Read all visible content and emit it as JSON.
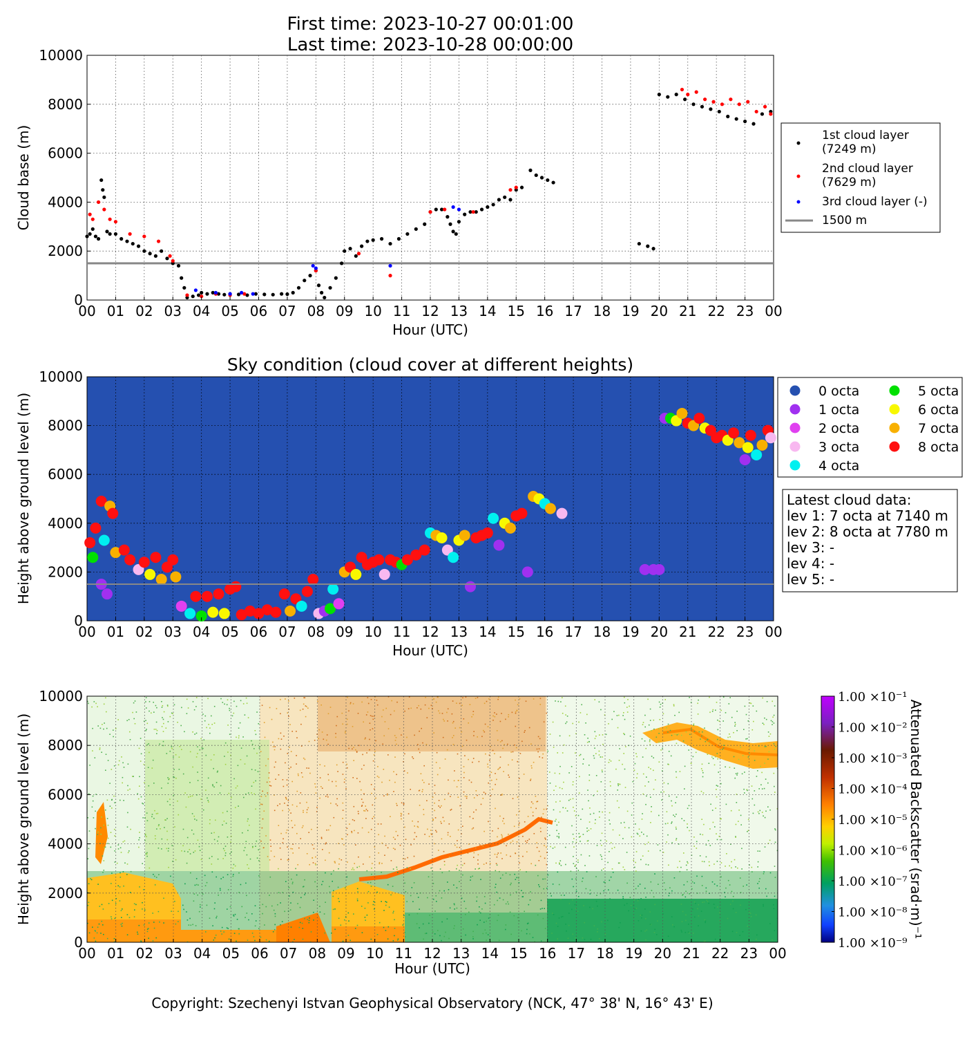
{
  "header": {
    "line1": "First time: 2023-10-27 00:01:00",
    "line2": "Last time: 2023-10-28 00:00:00"
  },
  "footer": {
    "copyright": "Copyright: Szechenyi Istvan Geophysical Observatory (NCK, 47° 38' N, 16° 43' E)"
  },
  "chart_data": [
    {
      "id": "cloud-base",
      "type": "scatter",
      "title": "",
      "xlabel": "Hour (UTC)",
      "ylabel": "Cloud base (m)",
      "xlim": [
        0,
        24
      ],
      "ylim": [
        0,
        10000
      ],
      "x_ticks": [
        "00",
        "01",
        "02",
        "03",
        "04",
        "05",
        "06",
        "07",
        "08",
        "09",
        "10",
        "11",
        "12",
        "13",
        "14",
        "15",
        "16",
        "17",
        "18",
        "19",
        "20",
        "21",
        "22",
        "23",
        "00"
      ],
      "y_ticks": [
        "0",
        "2000",
        "4000",
        "6000",
        "8000",
        "10000"
      ],
      "grid": true,
      "legend_position": "right",
      "reference_line": {
        "name": "1500 m",
        "y": 1500,
        "color": "#888888"
      },
      "series": [
        {
          "name": "1st cloud layer (7249 m)",
          "color": "#000000",
          "x": [
            0.0,
            0.1,
            0.2,
            0.3,
            0.4,
            0.5,
            0.55,
            0.6,
            0.7,
            0.8,
            1.0,
            1.2,
            1.4,
            1.6,
            1.8,
            2.0,
            2.2,
            2.4,
            2.6,
            2.8,
            3.0,
            3.2,
            3.3,
            3.4,
            3.5,
            3.7,
            3.9,
            4.0,
            4.2,
            4.4,
            4.6,
            4.8,
            5.0,
            5.3,
            5.6,
            5.9,
            6.2,
            6.5,
            6.8,
            7.0,
            7.2,
            7.4,
            7.6,
            7.8,
            8.0,
            8.1,
            8.2,
            8.3,
            8.5,
            8.7,
            8.9,
            9.0,
            9.2,
            9.4,
            9.6,
            9.8,
            10.0,
            10.3,
            10.6,
            10.9,
            11.2,
            11.5,
            11.8,
            12.0,
            12.2,
            12.4,
            12.6,
            12.7,
            12.8,
            12.9,
            13.0,
            13.2,
            13.4,
            13.6,
            13.8,
            14.0,
            14.2,
            14.4,
            14.6,
            14.8,
            15.0,
            15.2,
            15.5,
            15.7,
            15.9,
            16.1,
            16.3,
            19.3,
            19.6,
            19.8,
            20.0,
            20.3,
            20.6,
            20.9,
            21.2,
            21.5,
            21.8,
            22.1,
            22.4,
            22.7,
            23.0,
            23.3,
            23.6,
            23.9
          ],
          "y": [
            2600,
            2700,
            2900,
            2600,
            2500,
            4900,
            4500,
            4200,
            2800,
            2700,
            2700,
            2500,
            2400,
            2300,
            2200,
            2000,
            1900,
            1800,
            2000,
            1700,
            1500,
            1400,
            900,
            500,
            100,
            150,
            200,
            300,
            250,
            300,
            250,
            220,
            250,
            230,
            200,
            250,
            230,
            220,
            250,
            240,
            300,
            500,
            800,
            1000,
            1200,
            600,
            300,
            100,
            500,
            900,
            1500,
            2000,
            2100,
            1800,
            2200,
            2400,
            2450,
            2500,
            2300,
            2500,
            2700,
            2900,
            3100,
            3600,
            3700,
            3700,
            3400,
            3100,
            2800,
            2700,
            3200,
            3500,
            3600,
            3600,
            3700,
            3800,
            3900,
            4100,
            4200,
            4100,
            4500,
            4600,
            5300,
            5100,
            5000,
            4900,
            4800,
            2300,
            2200,
            2100,
            8400,
            8300,
            8400,
            8200,
            8000,
            7900,
            7800,
            7700,
            7500,
            7400,
            7300,
            7200,
            7600,
            7700
          ]
        },
        {
          "name": "2nd cloud layer (7629 m)",
          "color": "#ff0000",
          "x": [
            0.1,
            0.2,
            0.4,
            0.6,
            0.8,
            1.0,
            1.5,
            2.0,
            2.5,
            2.9,
            3.0,
            3.5,
            4.0,
            4.5,
            5.0,
            5.5,
            8.0,
            9.5,
            10.6,
            12.0,
            12.5,
            13.5,
            14.8,
            15.0,
            20.8,
            21.0,
            21.3,
            21.6,
            21.9,
            22.2,
            22.5,
            22.8,
            23.1,
            23.4,
            23.7,
            23.9
          ],
          "y": [
            3500,
            3300,
            4000,
            3700,
            3300,
            3200,
            2700,
            2600,
            2400,
            1800,
            1600,
            200,
            150,
            250,
            200,
            250,
            1200,
            1900,
            1000,
            3600,
            3700,
            3600,
            4500,
            4600,
            8600,
            8400,
            8500,
            8200,
            8100,
            8000,
            8200,
            8000,
            8100,
            7700,
            7900,
            7600
          ]
        },
        {
          "name": "3rd cloud layer (-)",
          "color": "#0000ff",
          "x": [
            3.8,
            4.5,
            5.0,
            5.4,
            5.8,
            7.9,
            8.0,
            10.6,
            12.8,
            13.0
          ],
          "y": [
            400,
            300,
            250,
            300,
            250,
            1400,
            1300,
            1400,
            3800,
            3700
          ]
        }
      ]
    },
    {
      "id": "sky-condition",
      "type": "scatter",
      "title": "Sky condition (cloud cover at different heights)",
      "xlabel": "Hour (UTC)",
      "ylabel": "Height above ground level (m)",
      "xlim": [
        0,
        24
      ],
      "ylim": [
        0,
        10000
      ],
      "x_ticks": [
        "00",
        "01",
        "02",
        "03",
        "04",
        "05",
        "06",
        "07",
        "08",
        "09",
        "10",
        "11",
        "12",
        "13",
        "14",
        "15",
        "16",
        "17",
        "18",
        "19",
        "20",
        "21",
        "22",
        "23",
        "00"
      ],
      "y_ticks": [
        "0",
        "2000",
        "4000",
        "6000",
        "8000",
        "10000"
      ],
      "grid": true,
      "background": "#2550b0",
      "legend_position": "right",
      "reference_line": {
        "y": 1500,
        "color": "#888888"
      },
      "legend": [
        {
          "label": "0 octa",
          "color": "#2550b0"
        },
        {
          "label": "1 octa",
          "color": "#a030f0"
        },
        {
          "label": "2 octa",
          "color": "#e040f0"
        },
        {
          "label": "3 octa",
          "color": "#f8b8f0"
        },
        {
          "label": "4 octa",
          "color": "#00f0f0"
        },
        {
          "label": "5 octa",
          "color": "#00e000"
        },
        {
          "label": "6 octa",
          "color": "#f8f800"
        },
        {
          "label": "7 octa",
          "color": "#f8b000"
        },
        {
          "label": "8 octa",
          "color": "#ff1010"
        }
      ],
      "points": [
        [
          0.1,
          3200,
          8
        ],
        [
          0.2,
          2600,
          5
        ],
        [
          0.3,
          3800,
          8
        ],
        [
          0.5,
          4900,
          8
        ],
        [
          0.6,
          3300,
          4
        ],
        [
          0.8,
          4700,
          7
        ],
        [
          0.9,
          4400,
          8
        ],
        [
          0.5,
          1500,
          1
        ],
        [
          0.7,
          1100,
          1
        ],
        [
          1.0,
          2800,
          7
        ],
        [
          1.3,
          2900,
          8
        ],
        [
          1.5,
          2500,
          8
        ],
        [
          1.8,
          2100,
          3
        ],
        [
          2.0,
          2400,
          8
        ],
        [
          2.2,
          1900,
          6
        ],
        [
          2.4,
          2600,
          8
        ],
        [
          2.6,
          1700,
          7
        ],
        [
          2.8,
          2200,
          8
        ],
        [
          3.0,
          2500,
          8
        ],
        [
          3.1,
          1800,
          7
        ],
        [
          3.3,
          600,
          2
        ],
        [
          3.6,
          300,
          4
        ],
        [
          3.8,
          1000,
          8
        ],
        [
          4.0,
          200,
          5
        ],
        [
          4.2,
          1000,
          8
        ],
        [
          4.4,
          350,
          6
        ],
        [
          4.6,
          1100,
          8
        ],
        [
          4.8,
          300,
          6
        ],
        [
          5.0,
          1300,
          8
        ],
        [
          5.2,
          1400,
          8
        ],
        [
          5.4,
          250,
          8
        ],
        [
          5.7,
          400,
          8
        ],
        [
          6.0,
          300,
          8
        ],
        [
          6.3,
          450,
          8
        ],
        [
          6.6,
          350,
          8
        ],
        [
          6.9,
          1100,
          8
        ],
        [
          7.1,
          400,
          7
        ],
        [
          7.3,
          900,
          8
        ],
        [
          7.5,
          600,
          4
        ],
        [
          7.7,
          1200,
          8
        ],
        [
          7.9,
          1700,
          8
        ],
        [
          8.1,
          300,
          3
        ],
        [
          8.3,
          400,
          1
        ],
        [
          8.5,
          500,
          5
        ],
        [
          8.6,
          1300,
          4
        ],
        [
          8.8,
          700,
          2
        ],
        [
          9.0,
          2000,
          7
        ],
        [
          9.2,
          2200,
          8
        ],
        [
          9.4,
          1900,
          6
        ],
        [
          9.6,
          2600,
          8
        ],
        [
          9.8,
          2300,
          8
        ],
        [
          10.0,
          2400,
          8
        ],
        [
          10.2,
          2500,
          8
        ],
        [
          10.4,
          1900,
          3
        ],
        [
          10.6,
          2500,
          8
        ],
        [
          10.8,
          2400,
          8
        ],
        [
          11.0,
          2300,
          5
        ],
        [
          11.2,
          2500,
          8
        ],
        [
          11.5,
          2700,
          8
        ],
        [
          11.8,
          2900,
          8
        ],
        [
          12.0,
          3600,
          4
        ],
        [
          12.2,
          3500,
          7
        ],
        [
          12.4,
          3400,
          6
        ],
        [
          12.6,
          2900,
          3
        ],
        [
          12.8,
          2600,
          4
        ],
        [
          13.0,
          3300,
          6
        ],
        [
          13.2,
          3500,
          7
        ],
        [
          13.4,
          1400,
          1
        ],
        [
          13.6,
          3400,
          8
        ],
        [
          13.8,
          3500,
          8
        ],
        [
          14.0,
          3600,
          8
        ],
        [
          14.2,
          4200,
          4
        ],
        [
          14.4,
          3100,
          1
        ],
        [
          14.6,
          4000,
          6
        ],
        [
          14.8,
          3800,
          7
        ],
        [
          15.0,
          4300,
          8
        ],
        [
          15.2,
          4400,
          8
        ],
        [
          15.4,
          2000,
          1
        ],
        [
          15.6,
          5100,
          7
        ],
        [
          15.8,
          5000,
          6
        ],
        [
          16.0,
          4800,
          4
        ],
        [
          16.2,
          4600,
          7
        ],
        [
          16.6,
          4400,
          3
        ],
        [
          19.5,
          2100,
          1
        ],
        [
          19.8,
          2100,
          1
        ],
        [
          20.0,
          2100,
          1
        ],
        [
          20.2,
          8300,
          1
        ],
        [
          20.4,
          8300,
          5
        ],
        [
          20.6,
          8200,
          6
        ],
        [
          20.8,
          8500,
          7
        ],
        [
          21.0,
          8100,
          8
        ],
        [
          21.2,
          8000,
          7
        ],
        [
          21.4,
          8300,
          8
        ],
        [
          21.6,
          7900,
          6
        ],
        [
          21.8,
          7800,
          8
        ],
        [
          22.0,
          7500,
          8
        ],
        [
          22.2,
          7600,
          8
        ],
        [
          22.4,
          7400,
          6
        ],
        [
          22.6,
          7700,
          8
        ],
        [
          22.8,
          7300,
          7
        ],
        [
          23.0,
          6600,
          1
        ],
        [
          23.1,
          7100,
          6
        ],
        [
          23.2,
          7600,
          8
        ],
        [
          23.4,
          6800,
          4
        ],
        [
          23.6,
          7200,
          7
        ],
        [
          23.8,
          7800,
          8
        ],
        [
          23.9,
          7500,
          3
        ]
      ]
    },
    {
      "id": "backscatter",
      "type": "heatmap",
      "title": "",
      "xlabel": "Hour (UTC)",
      "ylabel": "Height above ground level (m)",
      "colorbar_label": "Attenuated Backscatter (srad·m)⁻¹",
      "xlim": [
        0,
        24
      ],
      "ylim": [
        0,
        10000
      ],
      "x_ticks": [
        "00",
        "01",
        "02",
        "03",
        "04",
        "05",
        "06",
        "07",
        "08",
        "09",
        "10",
        "11",
        "12",
        "13",
        "14",
        "15",
        "16",
        "17",
        "18",
        "19",
        "20",
        "21",
        "22",
        "23",
        "00"
      ],
      "y_ticks": [
        "0",
        "2000",
        "4000",
        "6000",
        "8000",
        "10000"
      ],
      "colorbar_ticks": [
        "1.00 ×10⁻¹",
        "1.00 ×10⁻²",
        "1.00 ×10⁻³",
        "1.00 ×10⁻⁴",
        "1.00 ×10⁻⁵",
        "1.00 ×10⁻⁶",
        "1.00 ×10⁻⁷",
        "1.00 ×10⁻⁸",
        "1.00 ×10⁻⁹"
      ],
      "colorbar_colors": [
        "#c000ff",
        "#7a20c0",
        "#6a1a00",
        "#c03000",
        "#ff8000",
        "#ffd000",
        "#c0f000",
        "#40c000",
        "#00a060",
        "#2090e0",
        "#1040ff",
        "#000080"
      ]
    }
  ],
  "latest": {
    "title": "Latest cloud data:",
    "lines": [
      "lev 1: 7 octa at 7140 m",
      "lev 2: 8 octa at 7780 m",
      "lev 3: -",
      "lev 4: -",
      "lev 5: -"
    ]
  }
}
